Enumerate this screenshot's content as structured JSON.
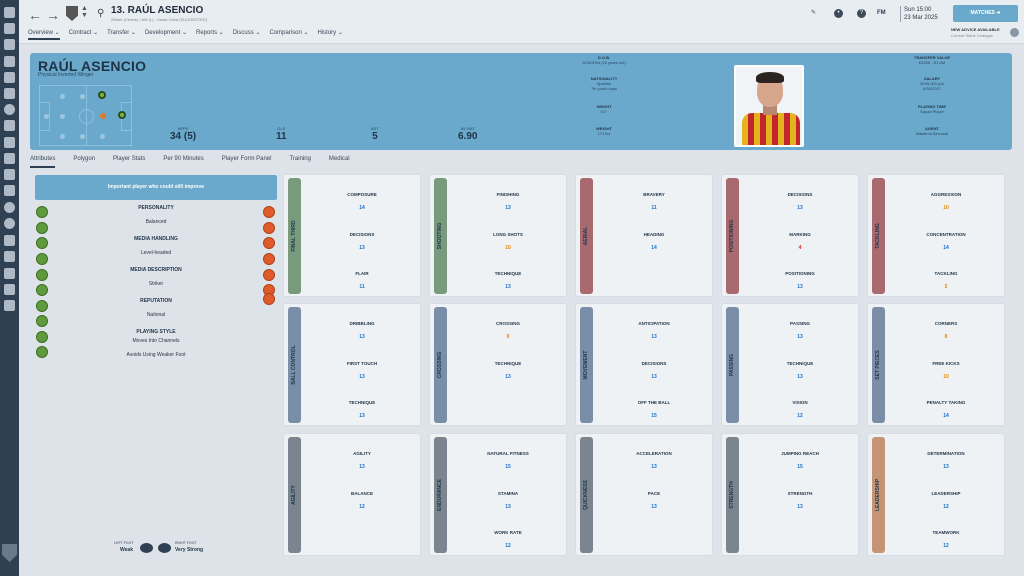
{
  "header": {
    "back_icon": "arrow-left-icon",
    "forward_icon": "arrow-right-icon",
    "title": "13. RAÚL ASENCIO",
    "subtitle": "Striker (Centre) / AM (L) - Santa Clara (SUGGESTED)",
    "menu": [
      "Overview",
      "Contract",
      "Transfer",
      "Development",
      "Reports",
      "Discuss",
      "Comparison",
      "History"
    ],
    "fm_label": "FM",
    "day_time": "Sun 15:00",
    "date": "23 Mar 2025",
    "matches_label": "MATCHES",
    "advice_title": "NEW ADVICE AVAILABLE",
    "advice_sub": "Current Shirts Changes"
  },
  "banner": {
    "name": "RAÚL ASENCIO",
    "role": "Physical Inverted Winger",
    "apps_label": "APPS",
    "apps": "34 (5)",
    "gls_label": "GLS",
    "gls": "11",
    "ast_label": "AST",
    "ast": "5",
    "avrat_label": "AV RAT",
    "avrat": "6.90",
    "dob_label": "D.O.B.",
    "dob": "5/20/2004 (20 years old)",
    "nationality_label": "NATIONALITY",
    "nationality": "Spanish",
    "nationality_sub": "7th youth caps",
    "height_label": "HEIGHT",
    "height": "6'2\"",
    "weight_label": "WEIGHT",
    "weight": "171 lbs",
    "transfer_label": "TRANSFER VALUE",
    "transfer": "€325K - €1.6M",
    "salary_label": "SALARY",
    "salary": "€249,000 p/a",
    "salary_sub": "6/30/2027",
    "playing_time_label": "PLAYING TIME",
    "playing_time": "Squad Player",
    "agent_label": "AGENT",
    "agent": "Massimo Bernardi"
  },
  "tabs": [
    "Attributes",
    "Polygon",
    "Player Stats",
    "Per 90 Minutes",
    "Player Form Panel",
    "Training",
    "Medical"
  ],
  "panel": {
    "important": "Important player who could still improve",
    "personality_label": "PERSONALITY",
    "personality": "Balanced",
    "media_handling_label": "MEDIA HANDLING",
    "media_handling": "Level-headed",
    "media_description_label": "MEDIA DESCRIPTION",
    "media_description": "Striker",
    "reputation_label": "REPUTATION",
    "reputation": "National",
    "playing_style_label": "PLAYING STYLE",
    "playing_style_1": "Moves Into Channels",
    "playing_style_2": "Avoids Using Weaker Foot",
    "left_foot_label": "LEFT FOOT",
    "left_foot": "Weak",
    "right_foot_label": "RIGHT FOOT",
    "right_foot": "Very Strong"
  },
  "colors": {
    "banner": "#6ba9cc",
    "green": "#7a9a7e",
    "red": "#a86a6e",
    "blue": "#7a8ea8",
    "grey": "#7a858f",
    "orange": "#c49474",
    "value_blue": "#1c6fc9",
    "value_orange": "#e08a00",
    "value_red": "#d42a1f"
  },
  "cards": [
    {
      "cat": "FINAL THIRD",
      "attrs": [
        {
          "n": "COMPOSURE",
          "v": "14"
        },
        {
          "n": "DECISIONS",
          "v": "13"
        },
        {
          "n": "FLAIR",
          "v": "11"
        }
      ]
    },
    {
      "cat": "SHOOTING",
      "attrs": [
        {
          "n": "FINISHING",
          "v": "13"
        },
        {
          "n": "LONG SHOTS",
          "v": "10"
        },
        {
          "n": "TECHNIQUE",
          "v": "13"
        }
      ]
    },
    {
      "cat": "AERIAL",
      "attrs": [
        {
          "n": "BRAVERY",
          "v": "11"
        },
        {
          "n": "HEADING",
          "v": "14"
        }
      ]
    },
    {
      "cat": "POSITIONING",
      "attrs": [
        {
          "n": "DECISIONS",
          "v": "13"
        },
        {
          "n": "MARKING",
          "v": "4"
        },
        {
          "n": "POSITIONING",
          "v": "13"
        }
      ]
    },
    {
      "cat": "TACKLING",
      "attrs": [
        {
          "n": "AGGRESSION",
          "v": "10"
        },
        {
          "n": "CONCENTRATION",
          "v": "14"
        },
        {
          "n": "TACKLING",
          "v": "5"
        }
      ]
    },
    {
      "cat": "BALL CONTROL",
      "attrs": [
        {
          "n": "DRIBBLING",
          "v": "13"
        },
        {
          "n": "FIRST TOUCH",
          "v": "13"
        },
        {
          "n": "TECHNIQUE",
          "v": "13"
        }
      ]
    },
    {
      "cat": "CROSSING",
      "attrs": [
        {
          "n": "CROSSING",
          "v": "9"
        },
        {
          "n": "TECHNIQUE",
          "v": "13"
        }
      ]
    },
    {
      "cat": "MOVEMENT",
      "attrs": [
        {
          "n": "ANTICIPATION",
          "v": "13"
        },
        {
          "n": "DECISIONS",
          "v": "13"
        },
        {
          "n": "OFF THE BALL",
          "v": "15"
        }
      ]
    },
    {
      "cat": "PASSING",
      "attrs": [
        {
          "n": "PASSING",
          "v": "13"
        },
        {
          "n": "TECHNIQUE",
          "v": "13"
        },
        {
          "n": "VISION",
          "v": "12"
        }
      ]
    },
    {
      "cat": "SET PIECES",
      "attrs": [
        {
          "n": "CORNERS",
          "v": "8"
        },
        {
          "n": "FREE KICKS",
          "v": "10"
        },
        {
          "n": "PENALTY TAKING",
          "v": "14"
        }
      ]
    },
    {
      "cat": "AGILITY",
      "attrs": [
        {
          "n": "AGILITY",
          "v": "13"
        },
        {
          "n": "BALANCE",
          "v": "12"
        }
      ]
    },
    {
      "cat": "ENDURANCE",
      "attrs": [
        {
          "n": "NATURAL FITNESS",
          "v": "15"
        },
        {
          "n": "STAMINA",
          "v": "13"
        },
        {
          "n": "WORK RATE",
          "v": "12"
        }
      ]
    },
    {
      "cat": "QUICKNESS",
      "attrs": [
        {
          "n": "ACCELERATION",
          "v": "13"
        },
        {
          "n": "PACE",
          "v": "13"
        }
      ]
    },
    {
      "cat": "STRENGTH",
      "attrs": [
        {
          "n": "JUMPING REACH",
          "v": "15"
        },
        {
          "n": "STRENGTH",
          "v": "13"
        }
      ]
    },
    {
      "cat": "LEADERSHIP",
      "attrs": [
        {
          "n": "DETERMINATION",
          "v": "13"
        },
        {
          "n": "LEADERSHIP",
          "v": "12"
        },
        {
          "n": "TEAMWORK",
          "v": "12"
        }
      ]
    }
  ]
}
